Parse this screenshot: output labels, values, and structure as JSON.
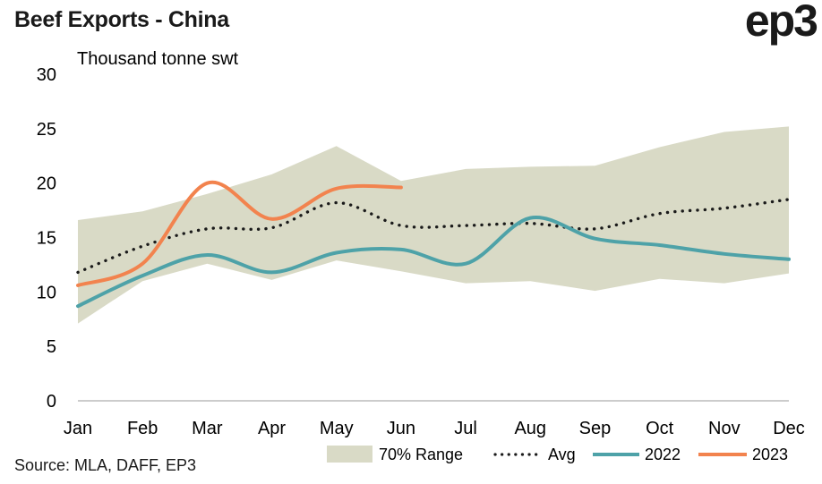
{
  "title": "Beef Exports - China",
  "logo_text": "ep3",
  "source": "Source: MLA, DAFF, EP3",
  "chart_data": {
    "type": "line",
    "title": "Beef Exports - China",
    "ylabel": "Thousand tonne swt",
    "xlabel": "",
    "categories": [
      "Jan",
      "Feb",
      "Mar",
      "Apr",
      "May",
      "Jun",
      "Jul",
      "Aug",
      "Sep",
      "Oct",
      "Nov",
      "Dec"
    ],
    "ylim": [
      0,
      30
    ],
    "yticks": [
      "0",
      "5",
      "10",
      "15",
      "20",
      "25",
      "30"
    ],
    "grid": false,
    "legend_position": "bottom-right",
    "range_band": {
      "name": "70% Range",
      "color": "#d9dac6",
      "low": [
        7.1,
        11.0,
        12.6,
        11.1,
        12.9,
        11.9,
        10.8,
        11.0,
        10.1,
        11.2,
        10.8,
        11.7
      ],
      "high": [
        16.6,
        17.4,
        19.0,
        20.8,
        23.4,
        20.2,
        21.3,
        21.5,
        21.6,
        23.3,
        24.7,
        25.2
      ]
    },
    "series": [
      {
        "name": "Avg",
        "color": "#1a1a1a",
        "style": "dotted",
        "values": [
          11.8,
          14.2,
          15.8,
          15.9,
          18.2,
          16.1,
          16.1,
          16.3,
          15.8,
          17.2,
          17.7,
          18.5
        ]
      },
      {
        "name": "2022",
        "color": "#4ea2a8",
        "style": "solid",
        "values": [
          8.7,
          11.5,
          13.4,
          11.8,
          13.6,
          13.9,
          12.6,
          16.8,
          14.9,
          14.3,
          13.5,
          13.0
        ]
      },
      {
        "name": "2023",
        "color": "#f2834e",
        "style": "solid",
        "values": [
          10.6,
          12.6,
          20.0,
          16.7,
          19.5,
          19.6,
          null,
          null,
          null,
          null,
          null,
          null
        ]
      }
    ]
  }
}
